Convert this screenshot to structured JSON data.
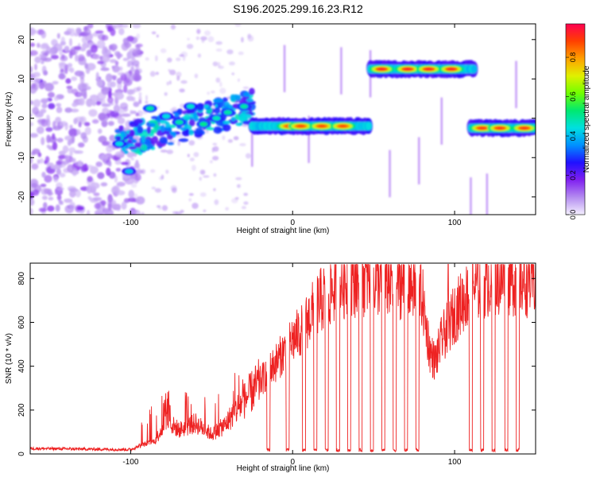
{
  "title": "S196.2025.299.16.23.R12",
  "chart_data": [
    {
      "type": "heatmap",
      "xlabel": "Height of straight line (km)",
      "ylabel": "Frequency (Hz)",
      "xlim": [
        -162,
        150
      ],
      "ylim": [
        -24.5,
        24
      ],
      "x_ticks": [
        "-100",
        "0",
        "100"
      ],
      "y_ticks": [
        "20",
        "10",
        "0",
        "-10",
        "-20"
      ],
      "colorbar": {
        "label": "Normalized spectral amplitude",
        "range": [
          0,
          0.97
        ],
        "ticks": [
          "0.0",
          "0.2",
          "0.4",
          "0.6",
          "0.8"
        ],
        "colors": [
          "#f4f0ff",
          "#b48cf0",
          "#8020f0",
          "#2010ff",
          "#0090ff",
          "#00e0e0",
          "#00e870",
          "#70ff00",
          "#e0f000",
          "#ffa000",
          "#ff4000",
          "#ff0050"
        ]
      },
      "segments": [
        {
          "x0": -25,
          "x1": 47,
          "freq": -2.0,
          "peak": 0.9,
          "blobs": [
            -2,
            5,
            18,
            31
          ]
        },
        {
          "x0": 48,
          "x1": 112,
          "freq": 12.5,
          "peak": 0.95,
          "blobs": [
            55,
            71,
            84,
            98
          ]
        },
        {
          "x0": 110,
          "x1": 150,
          "freq": -2.5,
          "peak": 0.92,
          "blobs": [
            117,
            128,
            143
          ]
        }
      ],
      "noise_region": [
        -162,
        -100
      ],
      "transition_region": [
        -100,
        -25
      ]
    },
    {
      "type": "line",
      "series": [
        {
          "name": "SNR",
          "color": "#ee2222"
        }
      ],
      "xlabel": "Height of straight line (km)",
      "ylabel": "SNR (10 * v/v)",
      "xlim": [
        -162,
        150
      ],
      "ylim": [
        0,
        870
      ],
      "x_ticks": [
        "-100",
        "0",
        "100"
      ],
      "y_ticks": [
        "0",
        "200",
        "400",
        "600",
        "800"
      ],
      "anchors": [
        [
          -162,
          25
        ],
        [
          -100,
          20
        ],
        [
          -95,
          35
        ],
        [
          -85,
          60
        ],
        [
          -78,
          150
        ],
        [
          -70,
          110
        ],
        [
          -60,
          140
        ],
        [
          -50,
          90
        ],
        [
          -42,
          130
        ],
        [
          -35,
          200
        ],
        [
          -28,
          260
        ],
        [
          -20,
          330
        ],
        [
          -10,
          420
        ],
        [
          0,
          520
        ],
        [
          5,
          560
        ],
        [
          10,
          620
        ],
        [
          15,
          680
        ],
        [
          20,
          720
        ],
        [
          30,
          780
        ],
        [
          45,
          800
        ],
        [
          60,
          790
        ],
        [
          75,
          770
        ],
        [
          80,
          720
        ],
        [
          82,
          600
        ],
        [
          85,
          460
        ],
        [
          88,
          420
        ],
        [
          92,
          520
        ],
        [
          96,
          580
        ],
        [
          100,
          640
        ],
        [
          105,
          700
        ],
        [
          112,
          760
        ],
        [
          120,
          790
        ],
        [
          135,
          800
        ],
        [
          150,
          790
        ]
      ],
      "dropouts": [
        [
          -16,
          -14
        ],
        [
          -4,
          -2
        ],
        [
          6,
          8
        ],
        [
          13,
          15
        ],
        [
          20,
          22
        ],
        [
          27,
          29
        ],
        [
          34,
          36
        ],
        [
          41,
          43
        ],
        [
          48,
          50
        ],
        [
          55,
          57
        ],
        [
          62,
          64
        ],
        [
          69,
          71
        ],
        [
          76,
          78
        ],
        [
          109,
          111
        ],
        [
          116,
          118
        ],
        [
          123,
          125
        ],
        [
          131,
          133
        ],
        [
          138,
          140
        ]
      ],
      "spike": [
        96,
        866
      ]
    }
  ]
}
